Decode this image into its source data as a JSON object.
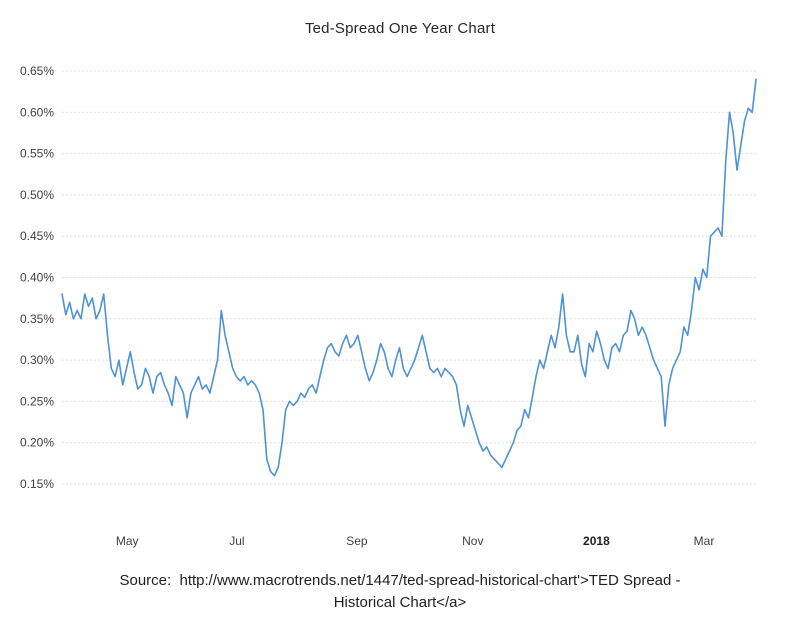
{
  "page": {
    "source_line1": "Source:  http://www.macrotrends.net/1447/ted-spread-historical-chart'>TED Spread -",
    "source_line2": "Historical Chart</a>"
  },
  "chart_data": {
    "type": "line",
    "title": "Ted-Spread One Year Chart",
    "xlabel": "",
    "ylabel": "",
    "x_start": "2017-04",
    "x_end": "2018-03",
    "ylim": [
      0.15,
      0.65
    ],
    "y_tick_step": 0.05,
    "y_ticks": [
      "0.65%",
      "0.60%",
      "0.55%",
      "0.50%",
      "0.45%",
      "0.40%",
      "0.35%",
      "0.30%",
      "0.25%",
      "0.20%",
      "0.15%"
    ],
    "x_ticks": [
      {
        "label": "May",
        "pos": 0.094,
        "bold": false
      },
      {
        "label": "Jul",
        "pos": 0.252,
        "bold": false
      },
      {
        "label": "Sep",
        "pos": 0.425,
        "bold": false
      },
      {
        "label": "Nov",
        "pos": 0.592,
        "bold": false
      },
      {
        "label": "2018",
        "pos": 0.77,
        "bold": true
      },
      {
        "label": "Mar",
        "pos": 0.925,
        "bold": false
      }
    ],
    "grid": true,
    "legend": "none",
    "line_color": "#4e92d4",
    "grid_color": "#d4d4d4",
    "series": [
      {
        "name": "TED Spread",
        "unit": "%",
        "values": [
          0.38,
          0.355,
          0.37,
          0.35,
          0.36,
          0.35,
          0.38,
          0.365,
          0.375,
          0.35,
          0.36,
          0.38,
          0.33,
          0.29,
          0.28,
          0.3,
          0.27,
          0.29,
          0.31,
          0.285,
          0.265,
          0.27,
          0.29,
          0.28,
          0.26,
          0.28,
          0.285,
          0.27,
          0.26,
          0.245,
          0.28,
          0.27,
          0.26,
          0.23,
          0.26,
          0.27,
          0.28,
          0.265,
          0.27,
          0.26,
          0.28,
          0.3,
          0.36,
          0.33,
          0.31,
          0.29,
          0.28,
          0.275,
          0.28,
          0.27,
          0.275,
          0.27,
          0.26,
          0.24,
          0.18,
          0.165,
          0.16,
          0.17,
          0.2,
          0.24,
          0.25,
          0.245,
          0.25,
          0.26,
          0.255,
          0.265,
          0.27,
          0.26,
          0.28,
          0.3,
          0.315,
          0.32,
          0.31,
          0.305,
          0.32,
          0.33,
          0.315,
          0.32,
          0.33,
          0.31,
          0.29,
          0.275,
          0.285,
          0.3,
          0.32,
          0.31,
          0.29,
          0.28,
          0.3,
          0.315,
          0.29,
          0.28,
          0.29,
          0.3,
          0.315,
          0.33,
          0.31,
          0.29,
          0.285,
          0.29,
          0.28,
          0.29,
          0.285,
          0.28,
          0.27,
          0.24,
          0.22,
          0.245,
          0.23,
          0.215,
          0.2,
          0.19,
          0.195,
          0.185,
          0.18,
          0.175,
          0.17,
          0.18,
          0.19,
          0.2,
          0.215,
          0.22,
          0.24,
          0.23,
          0.255,
          0.28,
          0.3,
          0.29,
          0.31,
          0.33,
          0.315,
          0.34,
          0.38,
          0.33,
          0.31,
          0.31,
          0.33,
          0.295,
          0.28,
          0.32,
          0.31,
          0.335,
          0.32,
          0.3,
          0.29,
          0.315,
          0.32,
          0.31,
          0.33,
          0.335,
          0.36,
          0.35,
          0.33,
          0.34,
          0.33,
          0.315,
          0.3,
          0.29,
          0.28,
          0.22,
          0.27,
          0.29,
          0.3,
          0.31,
          0.34,
          0.33,
          0.36,
          0.4,
          0.385,
          0.41,
          0.4,
          0.45,
          0.455,
          0.46,
          0.45,
          0.54,
          0.6,
          0.575,
          0.53,
          0.56,
          0.59,
          0.605,
          0.6,
          0.64
        ]
      }
    ]
  }
}
